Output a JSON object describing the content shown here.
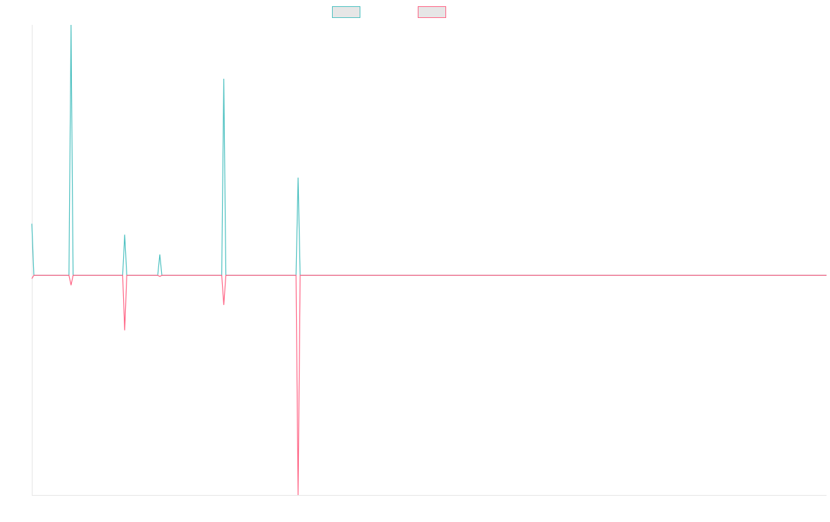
{
  "chart_data": {
    "type": "line",
    "title": "",
    "xlabel": "",
    "ylabel": "",
    "grid": false,
    "legend_position": "top-center",
    "x": [
      1,
      2,
      3,
      4,
      5,
      6,
      7,
      8,
      9,
      10,
      11,
      12,
      13,
      14,
      15,
      16,
      17,
      18,
      19,
      20,
      21,
      22,
      23,
      24,
      25,
      26,
      27,
      28,
      29,
      30,
      31,
      32,
      33,
      34,
      35,
      36,
      37,
      38,
      39,
      40,
      41,
      42,
      43,
      44,
      45,
      46,
      47,
      48,
      49,
      50,
      51,
      52,
      53,
      54,
      55,
      56,
      57,
      58,
      59,
      60,
      61,
      62,
      63,
      64,
      65,
      66,
      67,
      68,
      69,
      70,
      71,
      72,
      73,
      74,
      75,
      76,
      77,
      78,
      79,
      80,
      81,
      82,
      83,
      84,
      85,
      86,
      87,
      88,
      89,
      90,
      91,
      92,
      93,
      94,
      95,
      96,
      97,
      98,
      99,
      100,
      101,
      102,
      103,
      104,
      105,
      106,
      107,
      108,
      109,
      110,
      111,
      112,
      113,
      114,
      115,
      116,
      117,
      118,
      119,
      120,
      121,
      122,
      123,
      124,
      125,
      126,
      127,
      128,
      129,
      130,
      131,
      132,
      133,
      134,
      135,
      136,
      137,
      138,
      139,
      140,
      141,
      142,
      143,
      144,
      145,
      146,
      147,
      148,
      149,
      150,
      151,
      152,
      153,
      154,
      155,
      156,
      157,
      158,
      159,
      160,
      161,
      162,
      163,
      164,
      165,
      166,
      167,
      168,
      169,
      170,
      171,
      172,
      173,
      174,
      175,
      176,
      177,
      178,
      179,
      180,
      181,
      182,
      183,
      184,
      185,
      186,
      187,
      188,
      189,
      190,
      191,
      192,
      193,
      194,
      195,
      196,
      197,
      198,
      199,
      200,
      201,
      202,
      203,
      204,
      205,
      206,
      207,
      208,
      209,
      210,
      211,
      212,
      213,
      214,
      215,
      216,
      217,
      218,
      219,
      220,
      221,
      222,
      223,
      224,
      225,
      226,
      227,
      228,
      229,
      230,
      231,
      232,
      233,
      234,
      235,
      236,
      237,
      238,
      239,
      240,
      241,
      242,
      243,
      244,
      245,
      246,
      247,
      248,
      249,
      250,
      251,
      252,
      253,
      254,
      255,
      256,
      257,
      258,
      259,
      260,
      261,
      262,
      263,
      264,
      265,
      266,
      267,
      268,
      269,
      270,
      271,
      272,
      273,
      274,
      275,
      276,
      277,
      278,
      279,
      280,
      281,
      282,
      283,
      284,
      285,
      286,
      287,
      288,
      289,
      290,
      291,
      292,
      293,
      294,
      295,
      296,
      297,
      298,
      299,
      300,
      301,
      302,
      303,
      304,
      305,
      306,
      307,
      308,
      309,
      310,
      311,
      312,
      313,
      314,
      315,
      316,
      317,
      318,
      319,
      320,
      321,
      322,
      323,
      324,
      325,
      326,
      327,
      328,
      329,
      330,
      331,
      332,
      333,
      334,
      335,
      336,
      337,
      338,
      339,
      340,
      341,
      342,
      343,
      344,
      345,
      346,
      347,
      348,
      349,
      350,
      351,
      352,
      353,
      354,
      355,
      356,
      357,
      358,
      359,
      360,
      361,
      362,
      363,
      364,
      365,
      366,
      367,
      368,
      369,
      370,
      371,
      372,
      373,
      374,
      375,
      376,
      377,
      378,
      379,
      380,
      381,
      382,
      383,
      384,
      385,
      386
    ],
    "ylim": [
      -1.0,
      1.14
    ],
    "series": [
      {
        "name": "",
        "color": "#4bc0c0",
        "spikes": {
          "1": 0.235,
          "20": 1.14,
          "46": 0.185,
          "63": 0.095,
          "94": 0.895,
          "130": 0.445
        }
      },
      {
        "name": "",
        "color": "#ff6384",
        "spikes": {
          "1": -0.015,
          "20": -0.045,
          "46": -0.25,
          "63": -0.005,
          "94": -0.135,
          "130": -1.0
        }
      }
    ]
  }
}
